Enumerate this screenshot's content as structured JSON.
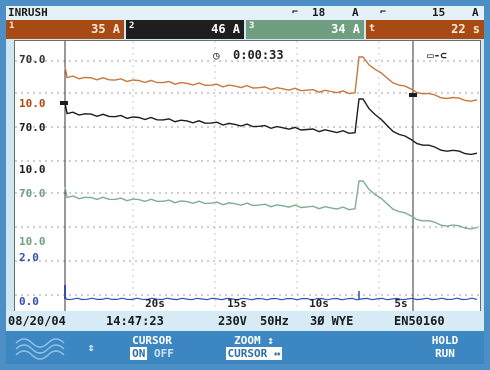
{
  "header": {
    "mode": "INRUSH",
    "ch4_icon": "probe-clamp",
    "ch4_value": "18",
    "ch4_unit": "A",
    "neutral_icon": "current-clamp",
    "neutral_value": "15",
    "neutral_unit": "A"
  },
  "readings": [
    {
      "index": "1",
      "value": "35 A",
      "color": "#a84a14"
    },
    {
      "index": "2",
      "value": "46 A",
      "color": "#1e1e1e"
    },
    {
      "index": "3",
      "value": "34 A",
      "color": "#6f9e80"
    },
    {
      "index": "t",
      "value": "22 s",
      "color": "#a84a14"
    }
  ],
  "overlay": {
    "timer": "0:00:33",
    "battery_icon": "battery-plug",
    "y_labels": [
      "70.0",
      "10.0",
      "70.0",
      "10.0",
      "70.0",
      "10.0",
      "2.0",
      "0.0"
    ],
    "x_labels": [
      "20s",
      "15s",
      "10s",
      "5s"
    ]
  },
  "footer": {
    "date": "08/20/04",
    "time": "14:47:23",
    "voltage": "230V",
    "frequency": "50Hz",
    "config": "3Ø WYE",
    "standard": "EN50160"
  },
  "softkeys": {
    "waveform_icon": "waveform-icon",
    "cursor_line1": "CURSOR",
    "cursor_on": "ON",
    "cursor_off": "OFF",
    "zoom_line1": "ZOOM ↕",
    "zoom_line2": "CURSOR ↔",
    "hold_line1": "HOLD",
    "hold_line2": "RUN"
  },
  "colors": {
    "trace1": "#c9773b",
    "trace2": "#1e1e1e",
    "trace3": "#7fae90",
    "trace_n": "#2f4fb5",
    "accent": "#4b8fc4"
  }
}
